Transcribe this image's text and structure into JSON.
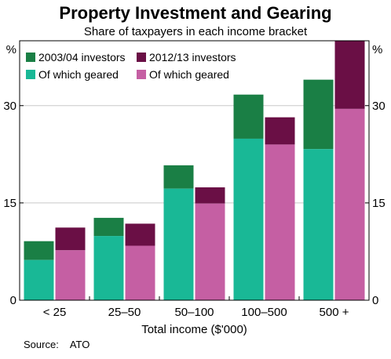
{
  "title": "Property Investment and Gearing",
  "subtitle": "Share of taxpayers in each income bracket",
  "source_label": "Source:",
  "source_value": "ATO",
  "chart_data": {
    "type": "bar",
    "xlabel": "Total income ($'000)",
    "ylabel_left": "%",
    "ylabel_right": "%",
    "ylim": [
      0,
      40
    ],
    "yticks": [
      0,
      15,
      30
    ],
    "grid": true,
    "legend_position": "top-left",
    "categories": [
      "< 25",
      "25–50",
      "50–100",
      "100–500",
      "500 +"
    ],
    "series": [
      {
        "name": "2003/04 investors",
        "values": [
          9.1,
          12.7,
          20.8,
          31.7,
          34.0
        ],
        "color": "#1a7f45"
      },
      {
        "name": "Of which geared",
        "values": [
          6.2,
          9.9,
          17.2,
          24.9,
          23.3
        ],
        "color": "#19b896"
      },
      {
        "name": "2012/13 investors",
        "values": [
          11.2,
          11.8,
          17.4,
          28.2,
          40.0
        ],
        "color": "#6a0f45"
      },
      {
        "name": "Of which geared",
        "values": [
          7.7,
          8.4,
          14.9,
          24.0,
          29.5
        ],
        "color": "#c55fa3"
      }
    ]
  }
}
